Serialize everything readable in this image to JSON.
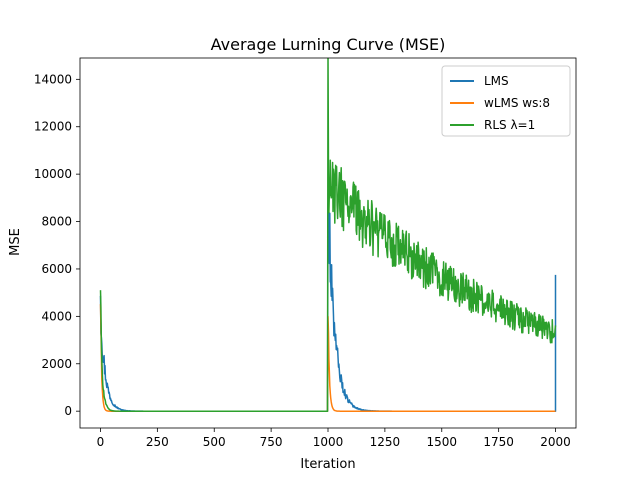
{
  "chart_data": {
    "type": "line",
    "title": "Average Lurning Curve (MSE)",
    "xlabel": "Iteration",
    "ylabel": "MSE",
    "xlim": [
      -90,
      2090
    ],
    "ylim": [
      -710,
      14900
    ],
    "xticks": [
      0,
      250,
      500,
      750,
      1000,
      1250,
      1500,
      1750,
      2000
    ],
    "yticks": [
      0,
      2000,
      4000,
      6000,
      8000,
      10000,
      12000,
      14000
    ],
    "legend_position": "top-right",
    "grid": false,
    "series": [
      {
        "name": "LMS",
        "color": "#1f77b4",
        "noise": 0.22,
        "segments": [
          {
            "x_start": 0,
            "x_end": 999,
            "y_start": 4200,
            "y_peak": 5400,
            "decay": 22,
            "floor": 0
          },
          {
            "x_start": 1000,
            "x_end": 2000,
            "y_start": 9000,
            "y_peak": 9600,
            "decay": 30,
            "floor": 0
          }
        ],
        "end_spike": {
          "x": 2000,
          "y": 5750
        }
      },
      {
        "name": "wLMS ws:8",
        "color": "#ff7f0e",
        "noise": 0.05,
        "segments": [
          {
            "x_start": 0,
            "x_end": 999,
            "y_start": 4600,
            "y_peak": 4600,
            "decay": 5,
            "floor": 0
          },
          {
            "x_start": 1000,
            "x_end": 2000,
            "y_start": 4200,
            "y_peak": 4200,
            "decay": 6,
            "floor": 0
          }
        ]
      },
      {
        "name": "RLS λ=1",
        "color": "#2ca02c",
        "noise": 0.15,
        "segments": [
          {
            "x_start": 0,
            "x_end": 999,
            "y_start": 3500,
            "y_peak": 5300,
            "decay": 10,
            "floor": 0
          },
          {
            "x_start": 1000,
            "x_end": 2000,
            "y_start": 9500,
            "y_peak": 14200,
            "decay": 950,
            "floor": 0
          }
        ]
      }
    ]
  }
}
